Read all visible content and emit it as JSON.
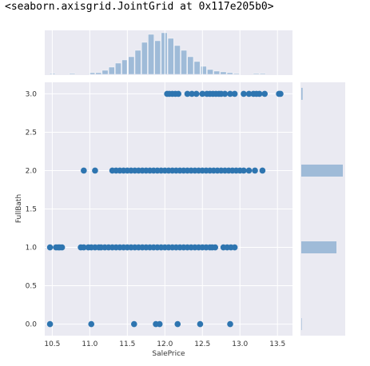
{
  "header_text": "<seaborn.axisgrid.JointGrid at 0x117e205b0>",
  "colors": {
    "background": "#eaeaf2",
    "grid": "#ffffff",
    "points": "#2e75b0",
    "hist": "#9fbbd8"
  },
  "chart_data": {
    "type": "scatter",
    "xlabel": "SalePrice",
    "ylabel": "FullBath",
    "xlim": [
      10.4,
      13.7
    ],
    "ylim": [
      -0.15,
      3.15
    ],
    "x_ticks": [
      "10.5",
      "11.0",
      "11.5",
      "12.0",
      "12.5",
      "13.0",
      "13.5"
    ],
    "y_ticks": [
      "0.0",
      "0.5",
      "1.0",
      "1.5",
      "2.0",
      "2.5",
      "3.0"
    ],
    "grid": true,
    "points": {
      "y0": [
        10.47,
        11.02,
        11.59,
        11.88,
        11.93,
        12.17,
        12.47,
        12.87
      ],
      "y1": [
        10.47,
        10.55,
        10.58,
        10.6,
        10.63,
        10.88,
        10.92,
        10.98,
        11.02,
        11.07,
        11.12,
        11.15,
        11.2,
        11.25,
        11.3,
        11.35,
        11.4,
        11.45,
        11.5,
        11.55,
        11.6,
        11.65,
        11.7,
        11.75,
        11.8,
        11.85,
        11.9,
        11.95,
        12.0,
        12.05,
        12.1,
        12.15,
        12.2,
        12.25,
        12.3,
        12.35,
        12.4,
        12.45,
        12.5,
        12.55,
        12.6,
        12.63,
        12.67,
        12.78,
        12.83,
        12.88,
        12.93
      ],
      "y2": [
        10.92,
        11.07,
        11.3,
        11.35,
        11.4,
        11.45,
        11.5,
        11.55,
        11.6,
        11.65,
        11.7,
        11.75,
        11.8,
        11.85,
        11.9,
        11.95,
        12.0,
        12.05,
        12.1,
        12.15,
        12.2,
        12.25,
        12.3,
        12.35,
        12.4,
        12.45,
        12.5,
        12.55,
        12.6,
        12.65,
        12.7,
        12.75,
        12.8,
        12.85,
        12.9,
        12.95,
        13.0,
        13.05,
        13.12,
        13.2,
        13.3
      ],
      "y3": [
        12.03,
        12.06,
        12.1,
        12.14,
        12.18,
        12.3,
        12.36,
        12.42,
        12.5,
        12.56,
        12.6,
        12.64,
        12.68,
        12.72,
        12.75,
        12.8,
        12.87,
        12.93,
        13.05,
        13.12,
        13.18,
        13.22,
        13.26,
        13.33,
        13.52,
        13.54
      ]
    },
    "marginal_x": {
      "bin_start": 10.46,
      "bin_width": 0.0875,
      "counts": [
        1,
        0,
        0,
        1,
        0,
        0,
        2,
        2,
        5,
        9,
        14,
        18,
        22,
        30,
        40,
        50,
        42,
        52,
        45,
        36,
        30,
        22,
        16,
        10,
        6,
        4,
        3,
        2,
        1,
        0,
        0,
        1,
        1
      ]
    },
    "marginal_y": [
      {
        "y": 3.0,
        "count": 25
      },
      {
        "y": 2.0,
        "count": 768
      },
      {
        "y": 1.0,
        "count": 650
      },
      {
        "y": 0.0,
        "count": 9
      }
    ]
  }
}
